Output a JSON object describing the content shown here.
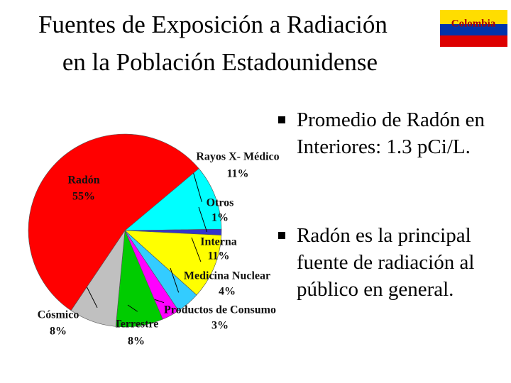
{
  "chart_data": {
    "type": "pie",
    "title": [
      "Fuentes de Exposición a Radiación",
      "en la Población Estadounidense"
    ],
    "logo": "Colombia",
    "categories": [
      "Rayos X- Médico",
      "Otros",
      "Interna",
      "Medicina Nuclear",
      "Productos de Consumo",
      "Terrestre",
      "Cósmico",
      "Radón"
    ],
    "values": [
      11,
      1,
      11,
      4,
      3,
      8,
      8,
      55
    ],
    "value_labels": [
      "11%",
      "1%",
      "11%",
      "4%",
      "3%",
      "8%",
      "8%",
      "55%"
    ],
    "colors": [
      "#00ffff",
      "#3333cc",
      "#ffff00",
      "#33ccff",
      "#ff00ff",
      "#00cc00",
      "#c0c0c0",
      "#ff0000"
    ],
    "bullets": [
      "Promedio de Radón en Interiores: 1.3 pCi/L.",
      "Radón es la principal fuente de radiación al público en general."
    ]
  }
}
